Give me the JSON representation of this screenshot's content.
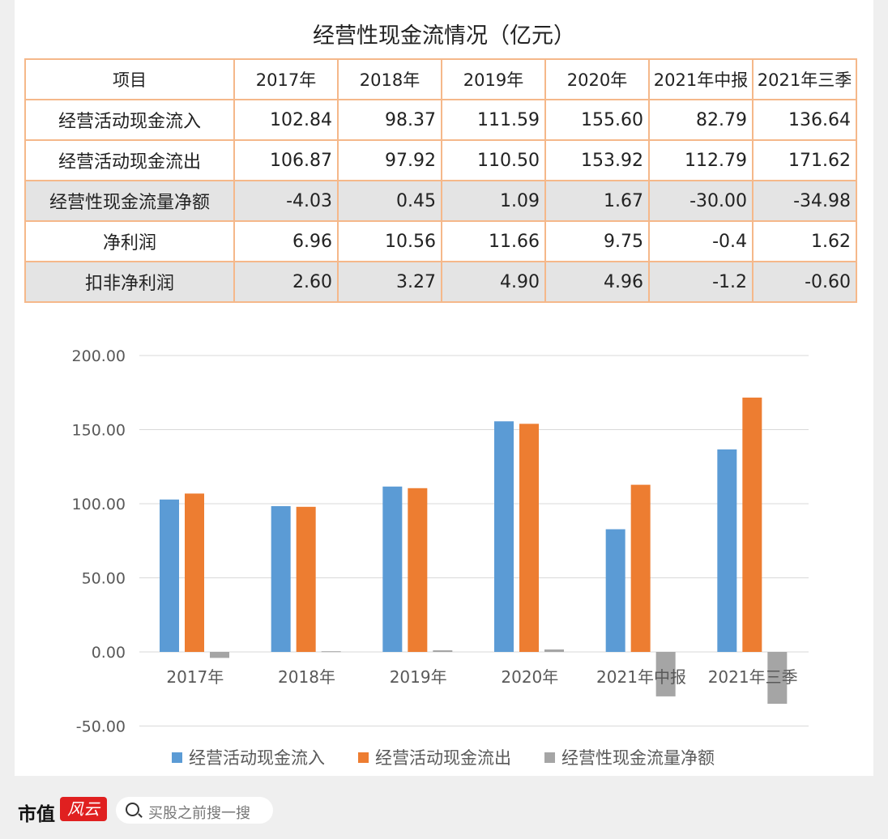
{
  "title": "经营性现金流情况（亿元）",
  "table": {
    "header": [
      "项目",
      "2017年",
      "2018年",
      "2019年",
      "2020年",
      "2021年中报",
      "2021年三季"
    ],
    "rows": [
      {
        "label": "经营活动现金流入",
        "values": [
          "102.84",
          "98.37",
          "111.59",
          "155.60",
          "82.79",
          "136.64"
        ],
        "shaded": false
      },
      {
        "label": "经营活动现金流出",
        "values": [
          "106.87",
          "97.92",
          "110.50",
          "153.92",
          "112.79",
          "171.62"
        ],
        "shaded": false
      },
      {
        "label": "经营性现金流量净额",
        "values": [
          "-4.03",
          "0.45",
          "1.09",
          "1.67",
          "-30.00",
          "-34.98"
        ],
        "shaded": true
      },
      {
        "label": "净利润",
        "values": [
          "6.96",
          "10.56",
          "11.66",
          "9.75",
          "-0.4",
          "1.62"
        ],
        "shaded": false
      },
      {
        "label": "扣非净利润",
        "values": [
          "2.60",
          "3.27",
          "4.90",
          "4.96",
          "-1.2",
          "-0.60"
        ],
        "shaded": true
      }
    ]
  },
  "chart_data": {
    "type": "bar",
    "categories": [
      "2017年",
      "2018年",
      "2019年",
      "2020年",
      "2021年中报",
      "2021年三季"
    ],
    "series": [
      {
        "name": "经营活动现金流入",
        "values": [
          102.84,
          98.37,
          111.59,
          155.6,
          82.79,
          136.64
        ],
        "color": "#5b9bd5"
      },
      {
        "name": "经营活动现金流出",
        "values": [
          106.87,
          97.92,
          110.5,
          153.92,
          112.79,
          171.62
        ],
        "color": "#ed7d31"
      },
      {
        "name": "经营性现金流量净额",
        "values": [
          -4.03,
          0.45,
          1.09,
          1.67,
          -30.0,
          -34.98
        ],
        "color": "#a5a5a5"
      }
    ],
    "ylim": [
      -50,
      200
    ],
    "yticks": [
      "-50.00",
      "0.00",
      "50.00",
      "100.00",
      "150.00",
      "200.00"
    ],
    "grid": true,
    "legend": "bottom"
  },
  "footer": {
    "logo_text": "市值",
    "logo_badge": "风云",
    "search_placeholder": "买股之前搜一搜"
  }
}
